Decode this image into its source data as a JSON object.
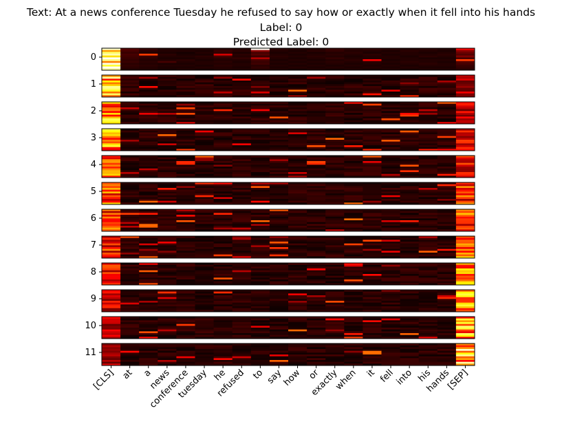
{
  "header": {
    "text_line": "Text: At a news conference Tuesday he refused to say how or exactly when it fell into his hands",
    "label_line": "Label: 0",
    "predicted_line": "Predicted Label: 0"
  },
  "chart_data": {
    "type": "heatmap",
    "title": "Text: At a news conference Tuesday he refused to say how or exactly when it fell into his hands",
    "subtitle": [
      "Label: 0",
      "Predicted Label: 0"
    ],
    "colormap": "hot",
    "x_tick_labels": [
      "[CLS]",
      "at",
      "a",
      "news",
      "conference",
      "tuesday",
      "he",
      "refused",
      "to",
      "say",
      "how",
      "or",
      "exactly",
      "when",
      "it",
      "fell",
      "into",
      "his",
      "hands",
      "[SEP]"
    ],
    "layer_labels": [
      "0",
      "1",
      "2",
      "3",
      "4",
      "5",
      "6",
      "7",
      "8",
      "9",
      "10",
      "11"
    ],
    "rows_per_layer": 12,
    "value_range": [
      0,
      1
    ],
    "layers": [
      [
        [
          0.95,
          0.12,
          0.08,
          0.05,
          0.04,
          0.05,
          0.06,
          0.05,
          0.99,
          0.06,
          0.05,
          0.05,
          0.08,
          0.06,
          0.07,
          0.06,
          0.05,
          0.06,
          0.05,
          0.35
        ],
        [
          0.6,
          0.1,
          0.06,
          0.05,
          0.05,
          0.04,
          0.08,
          0.06,
          0.2,
          0.05,
          0.04,
          0.06,
          0.07,
          0.05,
          0.05,
          0.04,
          0.06,
          0.05,
          0.04,
          0.2
        ],
        [
          0.85,
          0.08,
          0.05,
          0.04,
          0.03,
          0.05,
          0.07,
          0.04,
          0.1,
          0.04,
          0.05,
          0.04,
          0.05,
          0.06,
          0.04,
          0.05,
          0.05,
          0.04,
          0.05,
          0.15
        ],
        [
          0.92,
          0.1,
          0.45,
          0.06,
          0.04,
          0.04,
          0.3,
          0.06,
          0.12,
          0.05,
          0.04,
          0.05,
          0.06,
          0.05,
          0.06,
          0.04,
          0.05,
          0.05,
          0.06,
          0.12
        ],
        [
          0.7,
          0.09,
          0.08,
          0.05,
          0.05,
          0.06,
          0.1,
          0.05,
          0.08,
          0.06,
          0.05,
          0.06,
          0.05,
          0.04,
          0.05,
          0.05,
          0.04,
          0.06,
          0.05,
          0.18
        ],
        [
          0.99,
          0.08,
          0.06,
          0.04,
          0.04,
          0.05,
          0.06,
          0.07,
          0.25,
          0.05,
          0.04,
          0.05,
          0.07,
          0.05,
          0.05,
          0.05,
          0.05,
          0.04,
          0.04,
          0.1
        ],
        [
          0.88,
          0.07,
          0.05,
          0.05,
          0.06,
          0.04,
          0.05,
          0.05,
          0.1,
          0.04,
          0.05,
          0.04,
          0.05,
          0.06,
          0.35,
          0.04,
          0.05,
          0.05,
          0.05,
          0.45
        ],
        [
          0.55,
          0.08,
          0.06,
          0.1,
          0.05,
          0.05,
          0.06,
          0.04,
          0.08,
          0.05,
          0.04,
          0.05,
          0.06,
          0.05,
          0.06,
          0.05,
          0.06,
          0.05,
          0.04,
          0.12
        ],
        [
          0.97,
          0.06,
          0.05,
          0.04,
          0.04,
          0.05,
          0.05,
          0.05,
          0.09,
          0.04,
          0.05,
          0.04,
          0.05,
          0.04,
          0.05,
          0.04,
          0.05,
          0.06,
          0.05,
          0.1
        ],
        [
          0.8,
          0.07,
          0.06,
          0.05,
          0.05,
          0.04,
          0.06,
          0.05,
          0.06,
          0.05,
          0.04,
          0.05,
          0.04,
          0.05,
          0.04,
          0.05,
          0.04,
          0.05,
          0.05,
          0.08
        ],
        [
          0.99,
          0.06,
          0.05,
          0.04,
          0.04,
          0.05,
          0.05,
          0.04,
          0.07,
          0.04,
          0.05,
          0.04,
          0.05,
          0.04,
          0.05,
          0.04,
          0.05,
          0.04,
          0.04,
          0.07
        ],
        [
          0.9,
          0.05,
          0.05,
          0.04,
          0.05,
          0.04,
          0.05,
          0.05,
          0.06,
          0.05,
          0.04,
          0.05,
          0.04,
          0.05,
          0.04,
          0.05,
          0.04,
          0.05,
          0.05,
          0.06
        ]
      ]
    ]
  }
}
